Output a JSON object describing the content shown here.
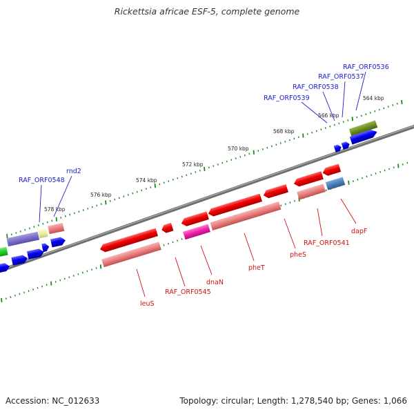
{
  "title": "Rickettsia africae ESF-5, complete genome",
  "footer": {
    "accession": "Accession: NC_012633",
    "info": "Topology: circular; Length: 1,278,540 bp; Genes: 1,066"
  },
  "ruler_labels": [
    "564 kbp",
    "566 kbp",
    "568 kbp",
    "570 kbp",
    "572 kbp",
    "574 kbp",
    "576 kbp",
    "578 kbp"
  ],
  "forward_gene_labels": [
    "RAF_ORF0536",
    "RAF_ORF0537",
    "RAF_ORF0538",
    "RAF_ORF0539",
    "rnd2",
    "RAF_ORF0548"
  ],
  "reverse_gene_labels": [
    "dapF",
    "RAF_ORF0541",
    "pheS",
    "pheT",
    "dnaN",
    "RAF_ORF0545",
    "leuS"
  ],
  "colors": {
    "backbone": "#777777",
    "forward_cds": "#0000ee",
    "reverse_cds": "#ee0000",
    "reverse_feature": "#e88080",
    "olive_feature": "#6b8e23",
    "purple_feature": "#7b6fc8",
    "magenta_feature": "#ee22aa",
    "steelblue_feature": "#4a7fb8",
    "green_feature": "#22cc22",
    "yellow_feature": "#eeeea0",
    "tick_green": "#1a8c1a",
    "forward_label": "#1a1acc",
    "reverse_label": "#cc1111"
  }
}
